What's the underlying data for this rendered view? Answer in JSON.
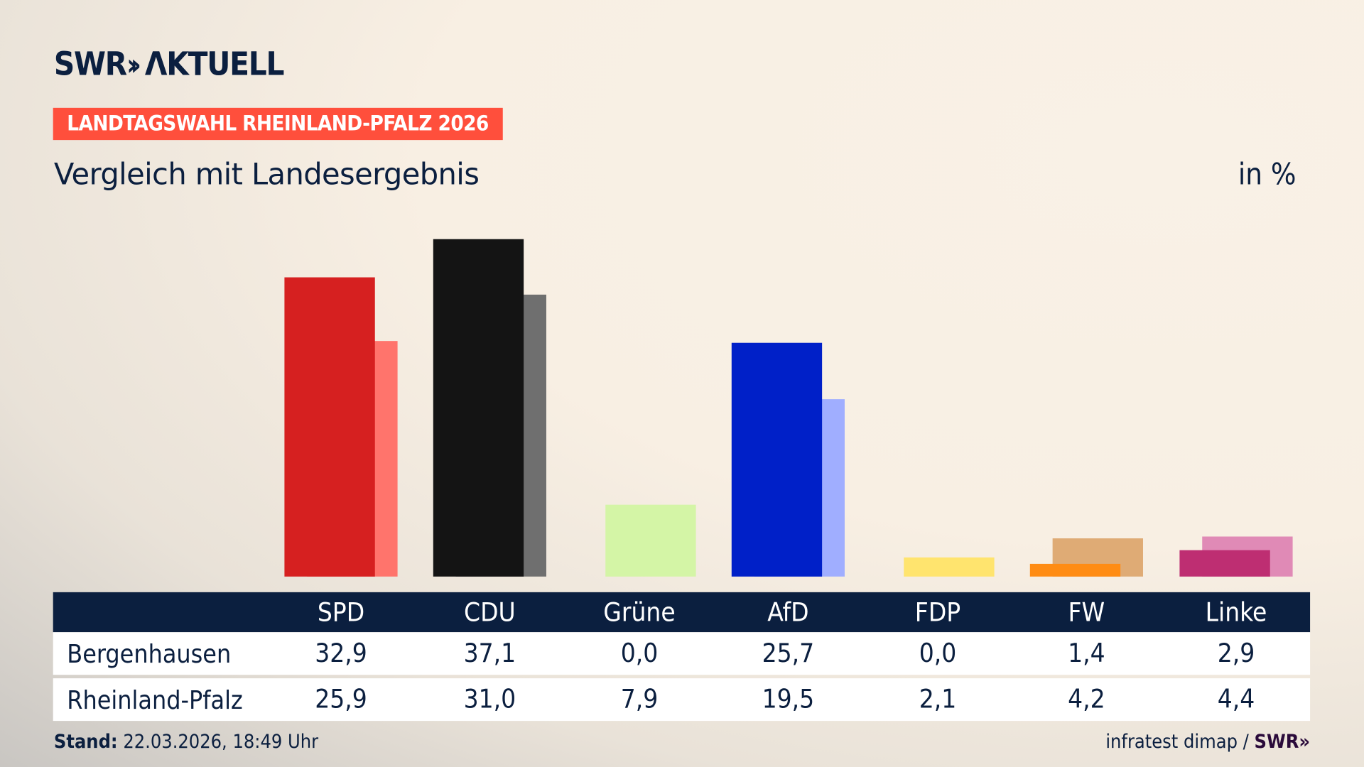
{
  "brand": {
    "logo": "SWR AKTUELL",
    "logo_text_swr": "SWR",
    "logo_text_aktuell": "ΛKTUELL"
  },
  "header": {
    "badge": "LANDTAGSWAHL RHEINLAND-PFALZ 2026",
    "subtitle": "Vergleich mit Landesergebnis",
    "unit": "in %"
  },
  "chart_data": {
    "type": "bar",
    "categories": [
      "SPD",
      "CDU",
      "Grüne",
      "AfD",
      "FDP",
      "FW",
      "Linke"
    ],
    "series": [
      {
        "name": "Bergenhausen",
        "values": [
          32.9,
          37.1,
          0.0,
          25.7,
          0.0,
          1.4,
          2.9
        ],
        "colors": [
          "#d62020",
          "#141414",
          "#8cc63f",
          "#0020c8",
          "#ffd400",
          "#ff8c14",
          "#be2e72"
        ]
      },
      {
        "name": "Rheinland-Pfalz",
        "values": [
          25.9,
          31.0,
          7.9,
          19.5,
          2.1,
          4.2,
          4.4
        ],
        "colors": [
          "#ff746c",
          "#6f6f6f",
          "#d4f5a6",
          "#a0aeff",
          "#ffe46e",
          "#dfab75",
          "#e08ab6"
        ]
      }
    ],
    "ylim": [
      0,
      40
    ],
    "grid": false
  },
  "table": {
    "headers": [
      "SPD",
      "CDU",
      "Grüne",
      "AfD",
      "FDP",
      "FW",
      "Linke"
    ],
    "rows": [
      {
        "label": "Bergenhausen",
        "values": [
          "32,9",
          "37,1",
          "0,0",
          "25,7",
          "0,0",
          "1,4",
          "2,9"
        ]
      },
      {
        "label": "Rheinland-Pfalz",
        "values": [
          "25,9",
          "31,0",
          "7,9",
          "19,5",
          "2,1",
          "4,2",
          "4,4"
        ]
      }
    ]
  },
  "footer": {
    "stand_label": "Stand:",
    "stand_value": "22.03.2026, 18:49 Uhr",
    "source": "infratest dimap /",
    "source_logo": "SWR"
  }
}
